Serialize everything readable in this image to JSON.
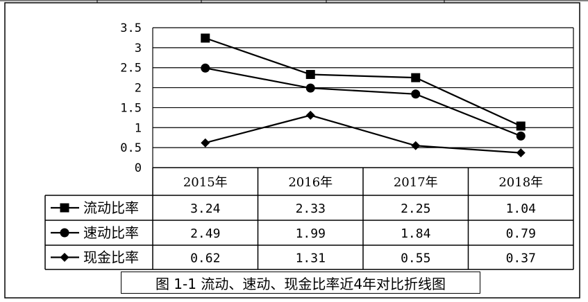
{
  "chart_data": {
    "type": "line",
    "title": "",
    "caption": "图 1-1 流动、速动、现金比率近4年对比折线图",
    "categories": [
      "2015年",
      "2016年",
      "2017年",
      "2018年"
    ],
    "ylim": [
      0,
      3.5
    ],
    "yticks": [
      "3.5",
      "3",
      "2.5",
      "2",
      "1.5",
      "1",
      "0.5",
      "0"
    ],
    "ytick_values": [
      3.5,
      3,
      2.5,
      2,
      1.5,
      1,
      0.5,
      0
    ],
    "grid": true,
    "legend_position": "table-left",
    "series": [
      {
        "name": "流动比率",
        "marker": "square",
        "values": [
          3.24,
          2.33,
          2.25,
          1.04
        ],
        "labels": [
          "3.24",
          "2.33",
          "2.25",
          "1.04"
        ]
      },
      {
        "name": "速动比率",
        "marker": "circle",
        "values": [
          2.49,
          1.99,
          1.84,
          0.79
        ],
        "labels": [
          "2.49",
          "1.99",
          "1.84",
          "0.79"
        ]
      },
      {
        "name": "现金比率",
        "marker": "diamond",
        "values": [
          0.62,
          1.31,
          0.55,
          0.37
        ],
        "labels": [
          "0.62",
          "1.31",
          "0.55",
          "0.37"
        ]
      }
    ],
    "colors": {
      "line": "#000000",
      "grid": "#000000",
      "background": "#ffffff"
    }
  }
}
